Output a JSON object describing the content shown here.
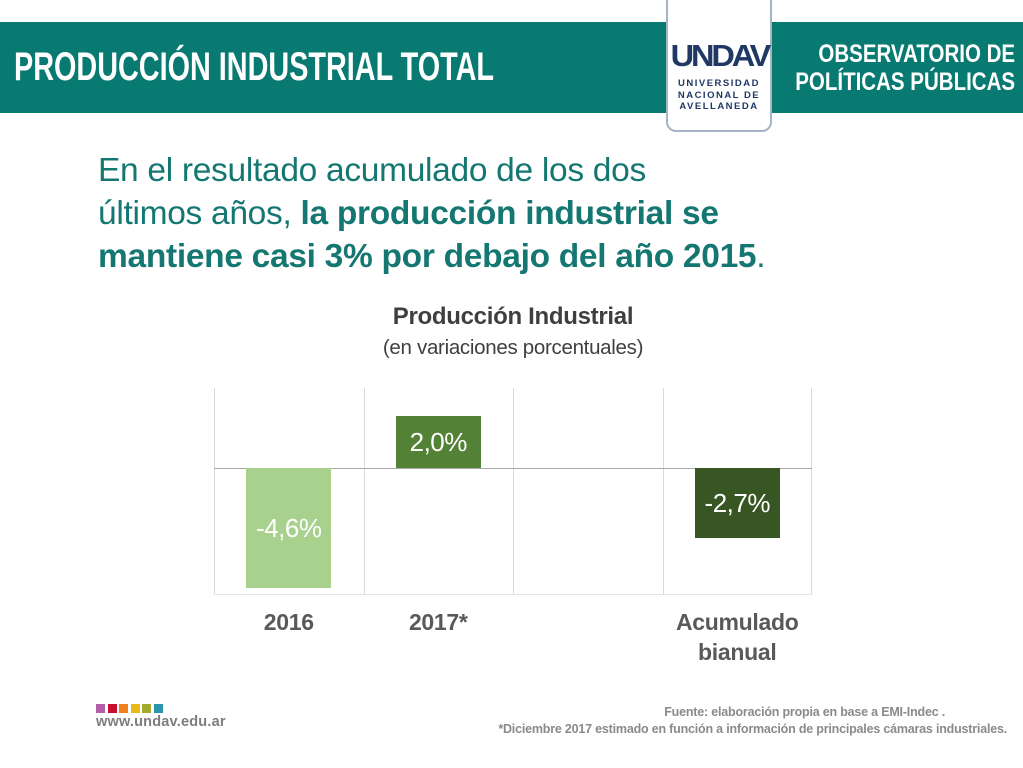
{
  "header": {
    "title": "PRODUCCIÓN INDUSTRIAL TOTAL",
    "org_line1": "OBSERVATORIO DE",
    "org_line2": "POLÍTICAS PÚBLICAS"
  },
  "logo": {
    "wordmark": "UNDAV",
    "institution_lines": [
      "UNIVERSIDAD",
      "NACIONAL DE",
      "AVELLANEDA"
    ]
  },
  "paragraph": {
    "lines": [
      [
        {
          "text": "En el resultado acumulado de los dos",
          "bold": false
        }
      ],
      [
        {
          "text": "últimos años, ",
          "bold": false
        },
        {
          "text": "la producción industrial se",
          "bold": true
        }
      ],
      [
        {
          "text": "mantiene casi 3% por debajo del año 2015",
          "bold": true
        },
        {
          "text": ".",
          "bold": false
        }
      ]
    ]
  },
  "chart_data": {
    "type": "bar",
    "title": "Producción Industrial",
    "subtitle": "(en variaciones porcentuales)",
    "categories": [
      "2016",
      "2017*",
      "",
      "Acumulado bianual"
    ],
    "values": [
      -4.6,
      2.0,
      null,
      -2.7
    ],
    "value_labels": [
      "-4,6%",
      "2,0%",
      null,
      "-2,7%"
    ],
    "bar_colors": [
      "#a9d18e",
      "#538135",
      null,
      "#375623"
    ],
    "unit": "%",
    "ylim": [
      -5,
      3
    ],
    "grid": "vertical-category-gridlines",
    "legend": "none",
    "zero_line": true
  },
  "footer": {
    "website": "www.undav.edu.ar",
    "dot_colors": [
      "#b05fa8",
      "#cb0e2e",
      "#f08019",
      "#eab818",
      "#a3aa2e",
      "#2e96ab"
    ],
    "source_line1": "Fuente: elaboración propia en base a EMI-Indec .",
    "source_line2": "*Diciembre 2017 estimado en función a información de principales cámaras industriales."
  },
  "colors": {
    "header_teal": "#087a72",
    "headline_teal": "#147771",
    "logo_navy": "#1f3864",
    "chart_text_gray": "#3f3f3f",
    "axis_label_gray": "#595959",
    "footer_gray": "#7d7d7d"
  }
}
